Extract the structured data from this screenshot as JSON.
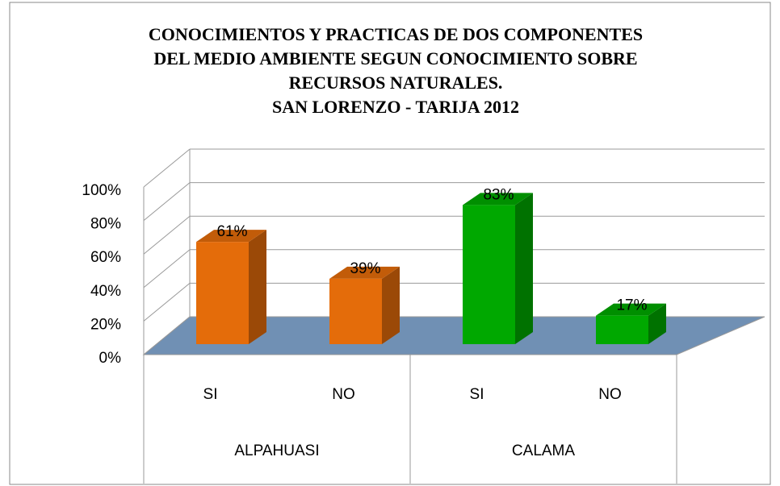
{
  "chart_data": {
    "type": "bar3d",
    "title": [
      "CONOCIMIENTOS Y PRACTICAS DE DOS COMPONENTES",
      "DEL MEDIO AMBIENTE SEGUN CONOCIMIENTO SOBRE",
      "RECURSOS NATURALES.",
      "SAN LORENZO - TARIJA 2012"
    ],
    "categories": [
      "SI",
      "NO",
      "SI",
      "NO"
    ],
    "groups": [
      "ALPAHUASI",
      "CALAMA"
    ],
    "values": [
      61,
      39,
      83,
      17
    ],
    "value_labels": [
      "61%",
      "39%",
      "83%",
      "17%"
    ],
    "colors": [
      "#e46c0a",
      "#e46c0a",
      "#00a800",
      "#00a800"
    ],
    "ylim": [
      0,
      100
    ],
    "yticks": [
      {
        "value": 0,
        "label": "0%"
      },
      {
        "value": 20,
        "label": "20%"
      },
      {
        "value": 40,
        "label": "40%"
      },
      {
        "value": 60,
        "label": "60%"
      },
      {
        "value": 80,
        "label": "80%"
      },
      {
        "value": 100,
        "label": "100%"
      }
    ],
    "grid": true
  }
}
